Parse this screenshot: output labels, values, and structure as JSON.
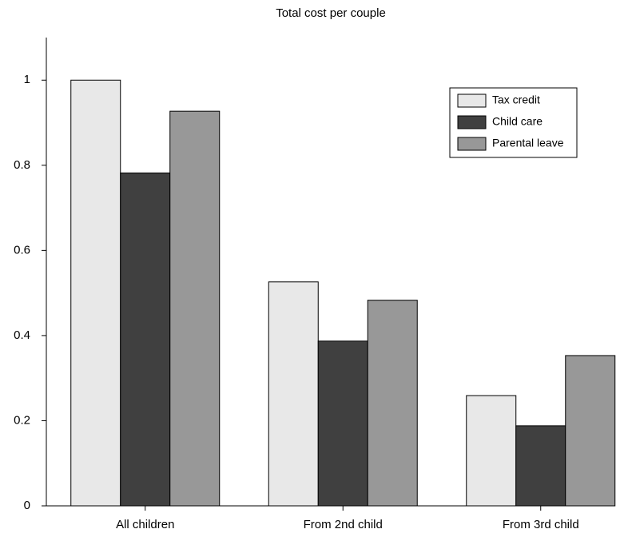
{
  "chart_data": {
    "type": "bar",
    "title": "Total cost per couple",
    "categories": [
      "All children",
      "From 2nd child",
      "From 3rd child"
    ],
    "series": [
      {
        "name": "Tax credit",
        "color": "#e8e8e8",
        "values": [
          1.0,
          0.526,
          0.259
        ]
      },
      {
        "name": "Child care",
        "color": "#404040",
        "values": [
          0.782,
          0.387,
          0.188
        ]
      },
      {
        "name": "Parental leave",
        "color": "#989898",
        "values": [
          0.927,
          0.483,
          0.353
        ]
      }
    ],
    "ylim": [
      0,
      1.1
    ],
    "yticks": [
      0,
      0.2,
      0.4,
      0.6,
      0.8,
      1
    ],
    "legend": "upper right"
  }
}
